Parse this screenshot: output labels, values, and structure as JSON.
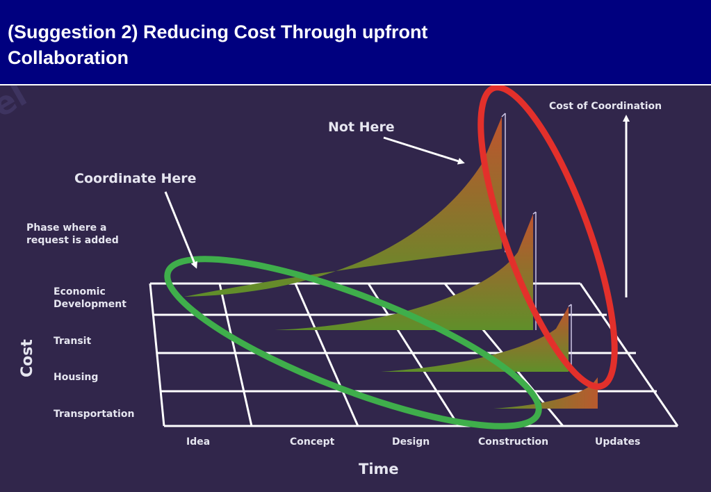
{
  "slide": {
    "title_line1": "(Suggestion 2) Reducing Cost Through upfront",
    "title_line2": "Collaboration"
  },
  "diagram": {
    "colors": {
      "background": "#31264b",
      "header": "#00007f",
      "grid": "#ffffff",
      "label": "#e6e6f0",
      "curve_top": "#c0532e",
      "curve_bottom": "#5f8f2a",
      "highlight_good": "#3fae4b",
      "highlight_bad": "#e3302b"
    },
    "callouts": {
      "not_here": "Not Here",
      "coordinate_here": "Coordinate Here",
      "phase_line1": "Phase where a",
      "phase_line2": "request is added"
    },
    "y_axis": {
      "label": "Cost",
      "categories": [
        "Economic",
        "Development",
        "Transit",
        "Housing",
        "Transportation"
      ]
    },
    "x_axis": {
      "label": "Time",
      "categories": [
        "Idea",
        "Concept",
        "Design",
        "Construction",
        "Updates"
      ]
    },
    "vertical_axis_label": "Cost of Coordination"
  }
}
